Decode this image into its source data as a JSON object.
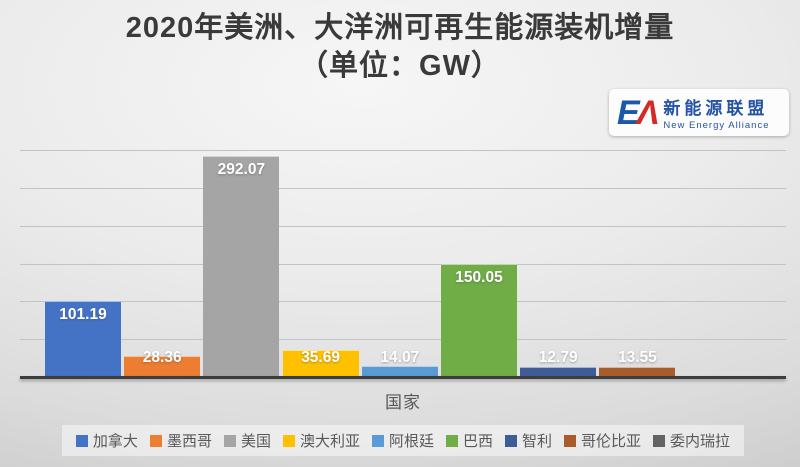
{
  "title": {
    "line1": "2020年美洲、大洋洲可再生能源装机增量",
    "line2": "（单位：GW）"
  },
  "logo": {
    "monogram_e": "E",
    "monogram_a": "Λ",
    "cn_name": "新能源联盟",
    "en_name": "New Energy Alliance",
    "blue": "#1d57a9",
    "red": "#d22b26"
  },
  "chart_data": {
    "type": "bar",
    "title": "2020年美洲、大洋洲可再生能源装机增量（单位：GW）",
    "xlabel": "国家",
    "ylabel": "",
    "categories": [
      "加拿大",
      "墨西哥",
      "美国",
      "澳大利亚",
      "阿根廷",
      "巴西",
      "智利",
      "哥伦比亚",
      "委内瑞拉"
    ],
    "category_keys": [
      "canada",
      "mexico",
      "usa",
      "australia",
      "argentina",
      "brazil",
      "chile",
      "colombia",
      "venezuela"
    ],
    "values": [
      101.19,
      28.36,
      292.07,
      35.69,
      14.07,
      150.05,
      12.79,
      13.55,
      0
    ],
    "data_labels": [
      "101.19",
      "28.36",
      "292.07",
      "35.69",
      "14.07",
      "150.05",
      "12.79",
      "13.55",
      ""
    ],
    "colors": [
      "#4472C4",
      "#ED7D31",
      "#A5A5A5",
      "#FFC000",
      "#5B9BD5",
      "#70AD47",
      "#3E5C96",
      "#A85C2B",
      "#636363"
    ],
    "ylim": [
      0,
      300
    ],
    "gridline_interval": 50,
    "grid": true,
    "y_axis_tick_labels": false,
    "legend_position": "bottom",
    "legend_entries": [
      "加拿大",
      "墨西哥",
      "美国",
      "澳大利亚",
      "阿根廷",
      "巴西",
      "智利",
      "哥伦比亚",
      "委内瑞拉"
    ]
  }
}
